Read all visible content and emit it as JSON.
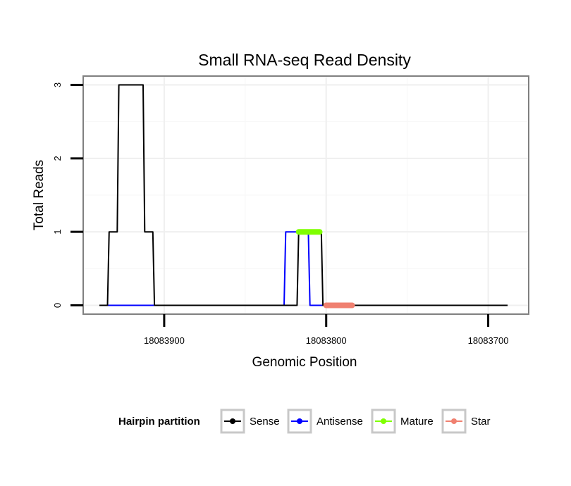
{
  "chart_data": {
    "type": "line",
    "title": "Small RNA-seq Read Density",
    "xlabel": "Genomic Position",
    "ylabel": "Total Reads",
    "xlim": [
      18083950,
      18083675
    ],
    "ylim": [
      -0.12,
      3.12
    ],
    "x_reversed": true,
    "grid": true,
    "x_ticks": [
      18083900,
      18083800,
      18083700
    ],
    "x_tick_labels": [
      "18083900",
      "18083800",
      "18083700"
    ],
    "y_ticks": [
      0,
      1,
      2,
      3
    ],
    "y_tick_labels": [
      "0",
      "1",
      "2",
      "3"
    ],
    "legend": {
      "title": "Hairpin partition",
      "position": "bottom",
      "entries": [
        {
          "name": "Sense",
          "color": "#000000"
        },
        {
          "name": "Antisense",
          "color": "#0000ff"
        },
        {
          "name": "Mature",
          "color": "#7fff00"
        },
        {
          "name": "Star",
          "color": "#f08070"
        }
      ]
    },
    "series": [
      {
        "name": "Antisense",
        "color": "#0000ff",
        "stroke_width": 2,
        "points": [
          [
            18083940,
            0
          ],
          [
            18083826,
            0
          ],
          [
            18083825,
            1
          ],
          [
            18083811,
            1
          ],
          [
            18083810,
            0
          ],
          [
            18083738,
            0
          ]
        ]
      },
      {
        "name": "Sense",
        "color": "#000000",
        "stroke_width": 2,
        "points": [
          [
            18083940,
            0
          ],
          [
            18083935,
            0
          ],
          [
            18083934,
            1
          ],
          [
            18083929,
            1
          ],
          [
            18083928,
            3
          ],
          [
            18083913,
            3
          ],
          [
            18083912,
            1
          ],
          [
            18083907,
            1
          ],
          [
            18083906,
            0
          ],
          [
            18083818,
            0
          ],
          [
            18083817,
            1
          ],
          [
            18083803,
            1
          ],
          [
            18083802,
            0
          ],
          [
            18083688,
            0
          ]
        ]
      },
      {
        "name": "Mature",
        "color": "#7fff00",
        "stroke_width": 8,
        "points": [
          [
            18083817,
            1
          ],
          [
            18083804,
            1
          ]
        ]
      },
      {
        "name": "Star",
        "color": "#f08070",
        "stroke_width": 8,
        "points": [
          [
            18083800,
            0
          ],
          [
            18083784,
            0
          ]
        ]
      }
    ]
  }
}
